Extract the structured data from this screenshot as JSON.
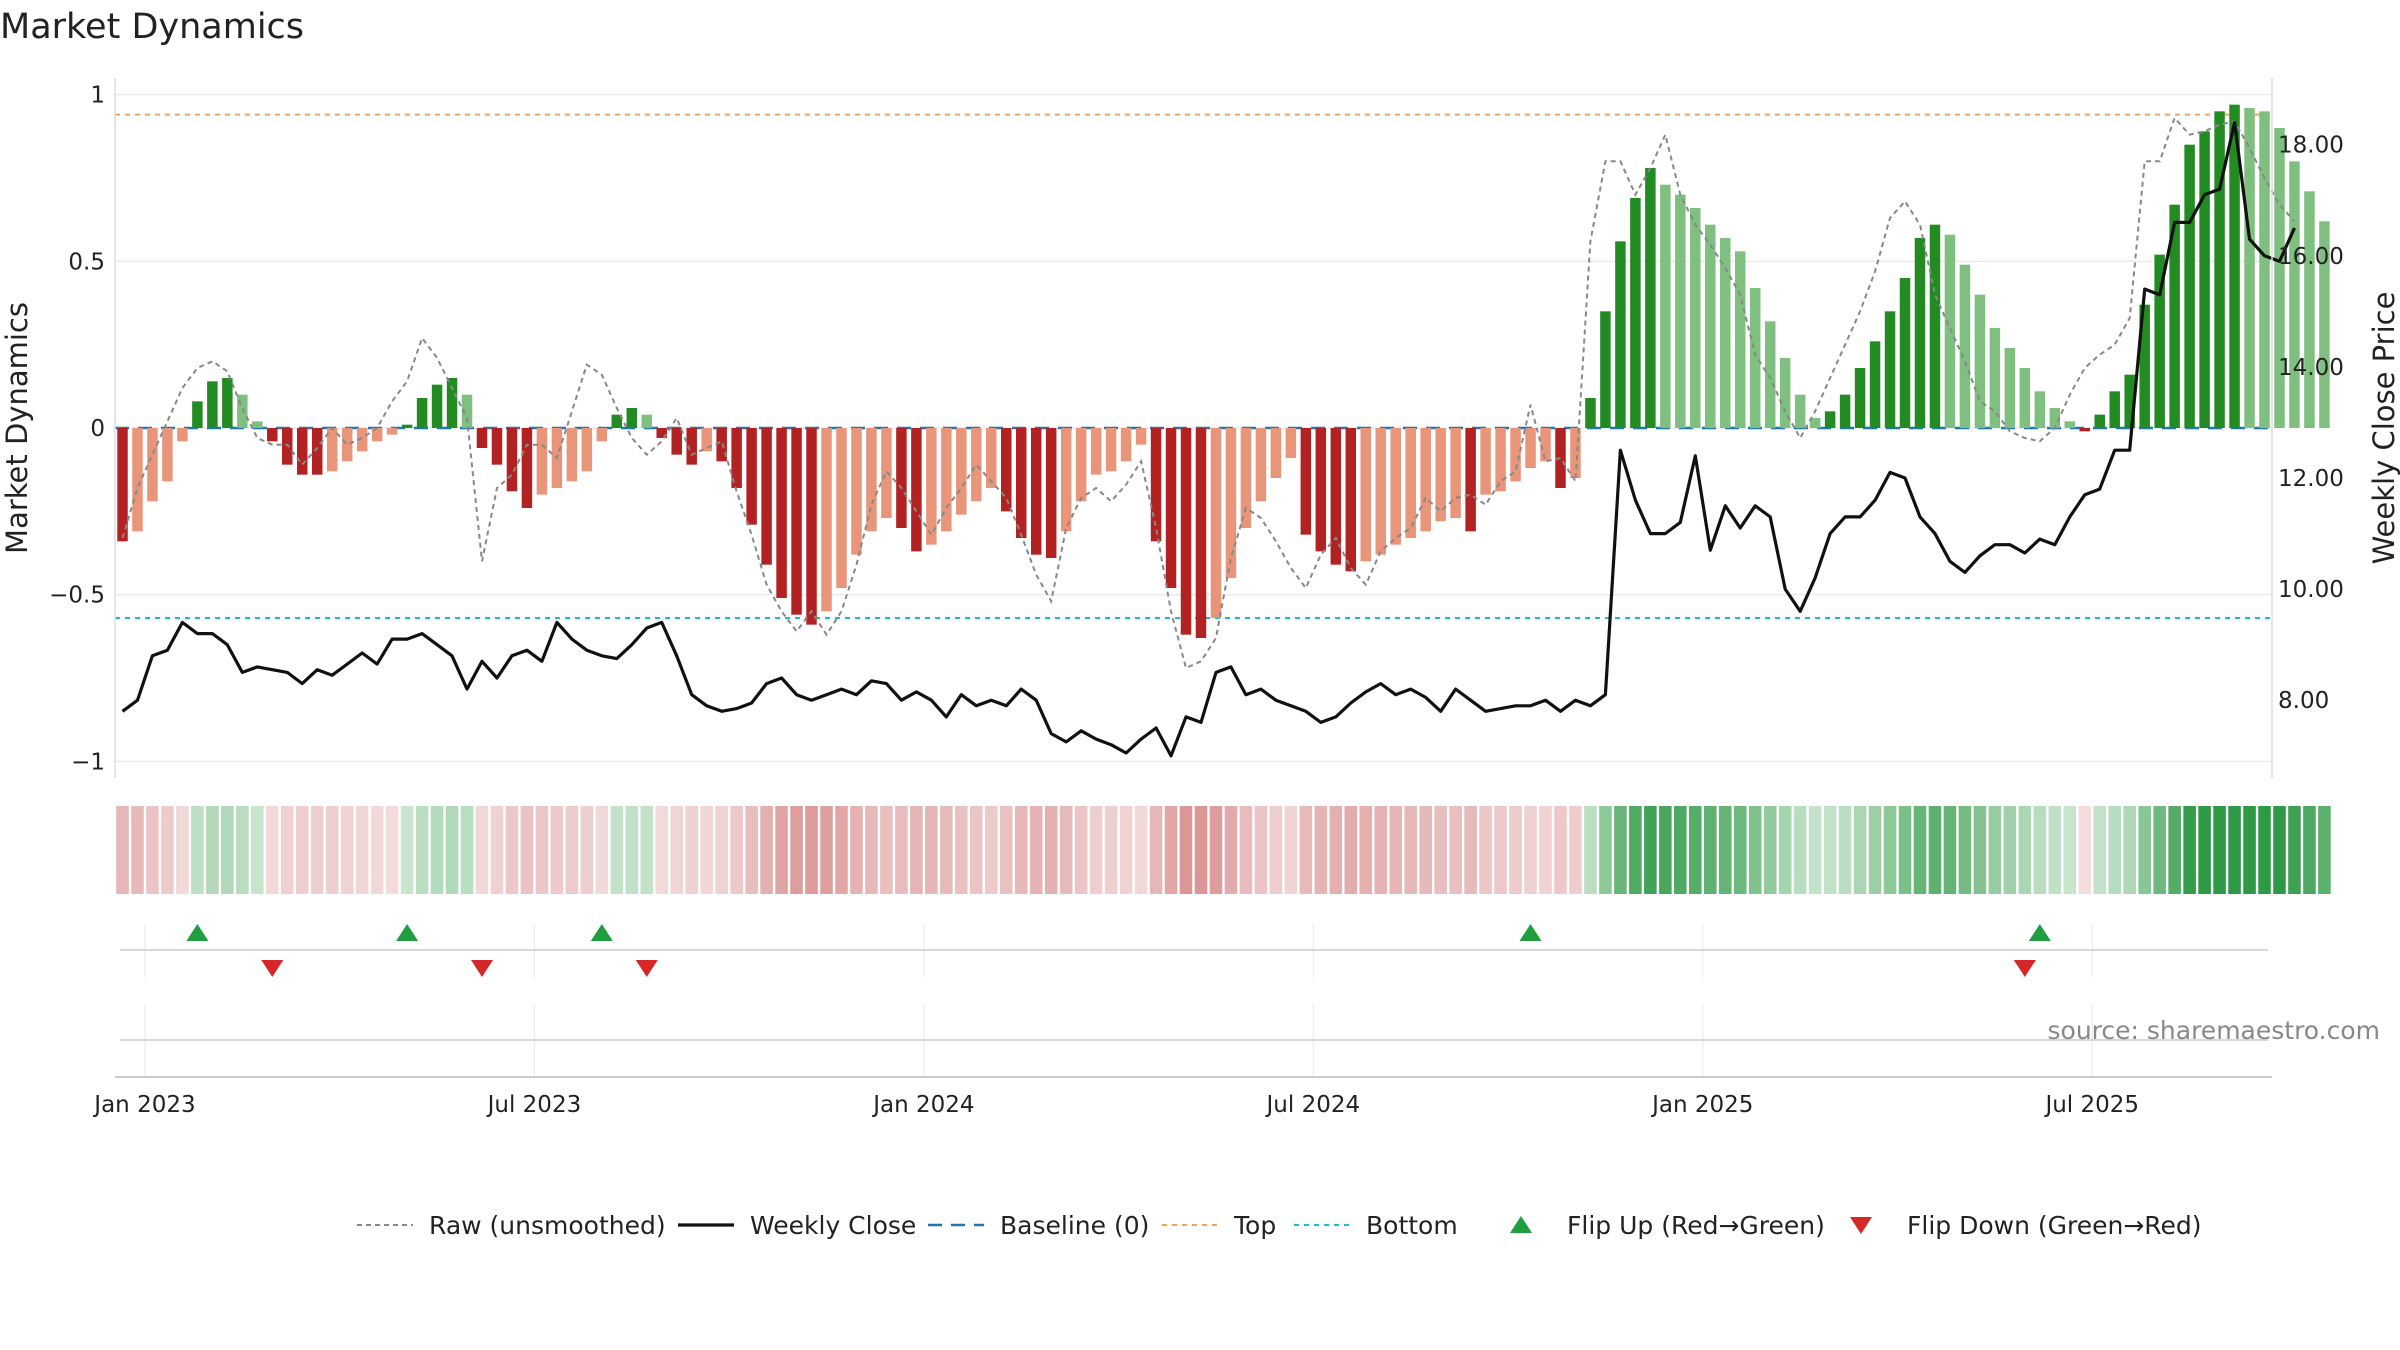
{
  "chart_data": {
    "type": "bar",
    "title": "Market Dynamics",
    "ylabel": "Market Dynamics",
    "y2label": "Weekly Close Price",
    "ylim": [
      -1.05,
      1.05
    ],
    "y2lim": [
      6.6,
      19.2
    ],
    "yticks": [
      {
        "v": 1,
        "t": "1"
      },
      {
        "v": 0.5,
        "t": "0.5"
      },
      {
        "v": 0,
        "t": "0"
      },
      {
        "v": -0.5,
        "t": "−0.5"
      },
      {
        "v": -1,
        "t": "−1"
      }
    ],
    "y2ticks": [
      "18.00",
      "16.00",
      "14.00",
      "12.00",
      "10.00",
      "8.00"
    ],
    "xticks": [
      {
        "label": "Jan 2023",
        "week": 2
      },
      {
        "label": "Jul 2023",
        "week": 28
      },
      {
        "label": "Jan 2024",
        "week": 54
      },
      {
        "label": "Jul 2024",
        "week": 80
      },
      {
        "label": "Jan 2025",
        "week": 106
      },
      {
        "label": "Jul 2025",
        "week": 132
      }
    ],
    "top_level": 0.94,
    "bottom_level": -0.57,
    "baseline": 0,
    "n_weeks": 144,
    "values": [
      -0.34,
      -0.31,
      -0.22,
      -0.16,
      -0.04,
      0.08,
      0.14,
      0.15,
      0.1,
      0.02,
      -0.04,
      -0.11,
      -0.14,
      -0.14,
      -0.13,
      -0.1,
      -0.07,
      -0.04,
      -0.02,
      0.01,
      0.09,
      0.13,
      0.15,
      0.1,
      -0.06,
      -0.11,
      -0.19,
      -0.24,
      -0.2,
      -0.18,
      -0.16,
      -0.13,
      -0.04,
      0.04,
      0.06,
      0.04,
      -0.03,
      -0.08,
      -0.11,
      -0.07,
      -0.1,
      -0.18,
      -0.29,
      -0.41,
      -0.51,
      -0.56,
      -0.59,
      -0.55,
      -0.48,
      -0.38,
      -0.31,
      -0.27,
      -0.3,
      -0.37,
      -0.35,
      -0.31,
      -0.26,
      -0.22,
      -0.18,
      -0.25,
      -0.33,
      -0.38,
      -0.39,
      -0.31,
      -0.22,
      -0.14,
      -0.13,
      -0.1,
      -0.05,
      -0.34,
      -0.48,
      -0.62,
      -0.63,
      -0.57,
      -0.45,
      -0.3,
      -0.22,
      -0.15,
      -0.09,
      -0.32,
      -0.37,
      -0.41,
      -0.43,
      -0.4,
      -0.38,
      -0.35,
      -0.33,
      -0.31,
      -0.28,
      -0.27,
      -0.31,
      -0.2,
      -0.19,
      -0.16,
      -0.12,
      -0.1,
      -0.18,
      -0.15,
      0.09,
      0.35,
      0.56,
      0.69,
      0.78,
      0.73,
      0.7,
      0.66,
      0.61,
      0.57,
      0.53,
      0.42,
      0.32,
      0.21,
      0.1,
      0.03,
      0.05,
      0.1,
      0.18,
      0.26,
      0.35,
      0.45,
      0.57,
      0.61,
      0.58,
      0.49,
      0.4,
      0.3,
      0.24,
      0.18,
      0.11,
      0.06,
      0.02,
      -0.01,
      0.04,
      0.11,
      0.16,
      0.37,
      0.52,
      0.67,
      0.85,
      0.89,
      0.95,
      0.97,
      0.96,
      0.95,
      0.9,
      0.8,
      0.71,
      0.62
    ],
    "raw": [
      -0.33,
      -0.18,
      -0.08,
      0.02,
      0.12,
      0.18,
      0.2,
      0.17,
      0.06,
      -0.03,
      -0.05,
      -0.05,
      -0.11,
      -0.06,
      0.0,
      -0.05,
      -0.03,
      0.0,
      0.08,
      0.14,
      0.27,
      0.21,
      0.12,
      0.03,
      -0.4,
      -0.18,
      -0.14,
      -0.05,
      -0.05,
      -0.09,
      0.05,
      0.19,
      0.16,
      0.06,
      -0.03,
      -0.08,
      -0.04,
      0.03,
      -0.08,
      -0.06,
      -0.04,
      -0.19,
      -0.32,
      -0.47,
      -0.55,
      -0.61,
      -0.55,
      -0.62,
      -0.55,
      -0.41,
      -0.23,
      -0.13,
      -0.18,
      -0.25,
      -0.32,
      -0.24,
      -0.18,
      -0.11,
      -0.16,
      -0.21,
      -0.32,
      -0.44,
      -0.52,
      -0.3,
      -0.21,
      -0.18,
      -0.22,
      -0.17,
      -0.1,
      -0.3,
      -0.55,
      -0.72,
      -0.7,
      -0.63,
      -0.39,
      -0.24,
      -0.27,
      -0.34,
      -0.42,
      -0.48,
      -0.38,
      -0.33,
      -0.42,
      -0.47,
      -0.37,
      -0.33,
      -0.3,
      -0.21,
      -0.25,
      -0.21,
      -0.2,
      -0.23,
      -0.16,
      -0.13,
      0.07,
      -0.1,
      -0.09,
      -0.16,
      0.56,
      0.8,
      0.8,
      0.7,
      0.78,
      0.88,
      0.7,
      0.61,
      0.55,
      0.48,
      0.4,
      0.22,
      0.15,
      0.05,
      -0.03,
      0.05,
      0.15,
      0.25,
      0.35,
      0.47,
      0.63,
      0.68,
      0.61,
      0.4,
      0.3,
      0.2,
      0.08,
      0.05,
      -0.01,
      -0.03,
      -0.04,
      0.0,
      0.1,
      0.18,
      0.22,
      0.25,
      0.33,
      0.8,
      0.8,
      0.93,
      0.88,
      0.89,
      0.91,
      0.92,
      0.84,
      0.75,
      0.67,
      0.62
    ],
    "price": [
      7.8,
      8.0,
      8.8,
      8.9,
      9.4,
      9.2,
      9.2,
      9.0,
      8.5,
      8.6,
      8.55,
      8.5,
      8.3,
      8.55,
      8.45,
      8.65,
      8.85,
      8.65,
      9.1,
      9.1,
      9.2,
      9.0,
      8.8,
      8.2,
      8.7,
      8.4,
      8.8,
      8.9,
      8.7,
      9.4,
      9.1,
      8.9,
      8.8,
      8.75,
      9.0,
      9.3,
      9.4,
      8.8,
      8.1,
      7.9,
      7.8,
      7.85,
      7.95,
      8.3,
      8.4,
      8.1,
      8.0,
      8.1,
      8.2,
      8.1,
      8.35,
      8.3,
      8.0,
      8.15,
      8.0,
      7.7,
      8.1,
      7.9,
      8.0,
      7.9,
      8.2,
      8.0,
      7.4,
      7.25,
      7.45,
      7.3,
      7.2,
      7.05,
      7.3,
      7.5,
      7.0,
      7.7,
      7.6,
      8.5,
      8.6,
      8.1,
      8.2,
      8.0,
      7.9,
      7.8,
      7.6,
      7.7,
      7.95,
      8.15,
      8.3,
      8.1,
      8.2,
      8.05,
      7.8,
      8.2,
      8.0,
      7.8,
      7.85,
      7.9,
      7.9,
      8.0,
      7.8,
      8.0,
      7.9,
      8.1,
      12.5,
      11.6,
      11.0,
      11.0,
      11.2,
      12.4,
      10.7,
      11.5,
      11.1,
      11.5,
      11.3,
      10.0,
      9.6,
      10.2,
      11.0,
      11.3,
      11.3,
      11.6,
      12.1,
      12.0,
      11.3,
      11.0,
      10.5,
      10.3,
      10.6,
      10.8,
      10.8,
      10.65,
      10.9,
      10.8,
      11.3,
      11.7,
      11.8,
      12.5,
      12.5,
      15.4,
      15.3,
      16.6,
      16.6,
      17.1,
      17.2,
      18.4,
      16.3,
      16.0,
      15.9,
      16.5
    ],
    "flip_up_weeks": [
      5,
      19,
      32,
      94,
      128
    ],
    "flip_down_weeks": [
      10,
      24,
      35,
      127
    ],
    "legend": [
      "Raw (unsmoothed)",
      "Weekly Close",
      "Baseline (0)",
      "Top",
      "Bottom",
      "Flip Up (Red→Green)",
      "Flip Down (Green→Red)"
    ],
    "source": "source: sharemaestro.com",
    "grid": true,
    "legend_placement": "bottom-center",
    "colors": {
      "strong_green": "#228b22",
      "light_green": "#7fbf7f",
      "strong_red": "#b22222",
      "light_red": "#e8957a",
      "raw": "#888888",
      "price": "#111111",
      "baseline": "#1f77b4",
      "top": "#f4a261",
      "bottom": "#17becf",
      "flip_up": "#1e9e3e",
      "flip_down": "#d62728"
    }
  }
}
